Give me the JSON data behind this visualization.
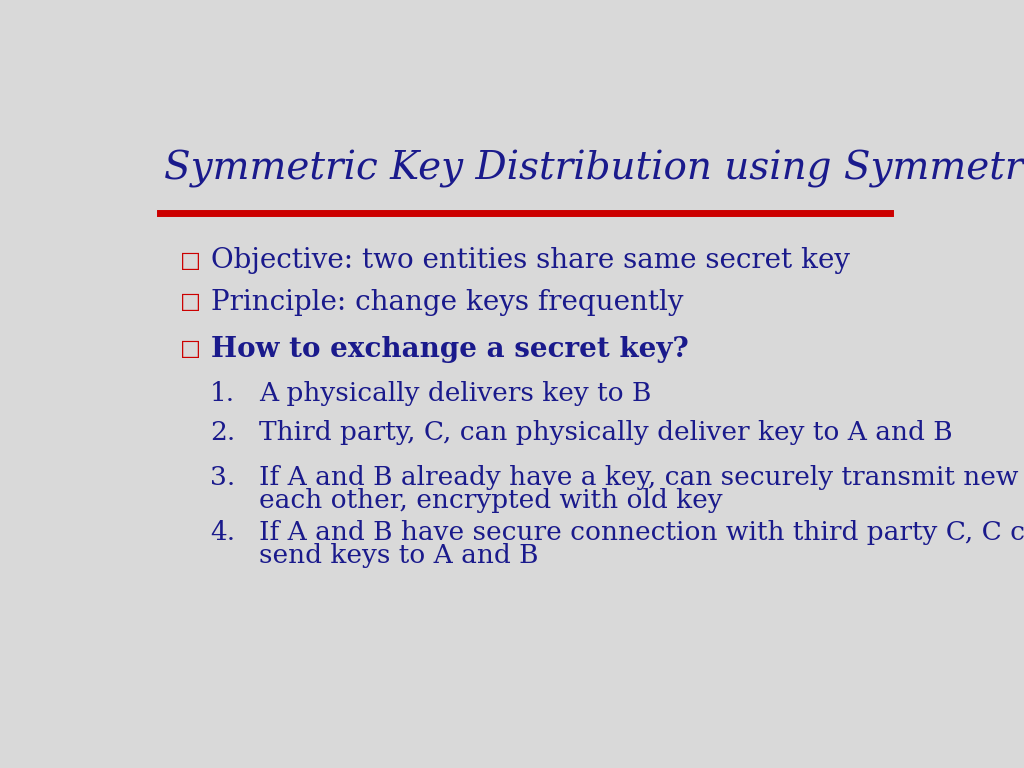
{
  "title": "Symmetric Key Distribution using Symmetric Encryption",
  "title_color": "#1a1a8c",
  "title_fontsize": 28,
  "background_color": "#d9d9d9",
  "line_color": "#cc0000",
  "bullet_color": "#cc0000",
  "text_color": "#1a1a8c",
  "bullets": [
    {
      "text": "Objective: two entities share same secret key",
      "bold": false
    },
    {
      "text": "Principle: change keys frequently",
      "bold": false
    },
    {
      "text": "How to exchange a secret key?",
      "bold": true
    }
  ],
  "numbered_items": [
    {
      "num": "1.",
      "line1": "A physically delivers key to B",
      "line2": null
    },
    {
      "num": "2.",
      "line1": "Third party, C, can physically deliver key to A and B",
      "line2": null
    },
    {
      "num": "3.",
      "line1": "If A and B already have a key, can securely transmit new key to",
      "line2": "each other, encrypted with old key"
    },
    {
      "num": "4.",
      "line1": "If A and B have secure connection with third party C, C can securely",
      "line2": "send keys to A and B"
    }
  ]
}
